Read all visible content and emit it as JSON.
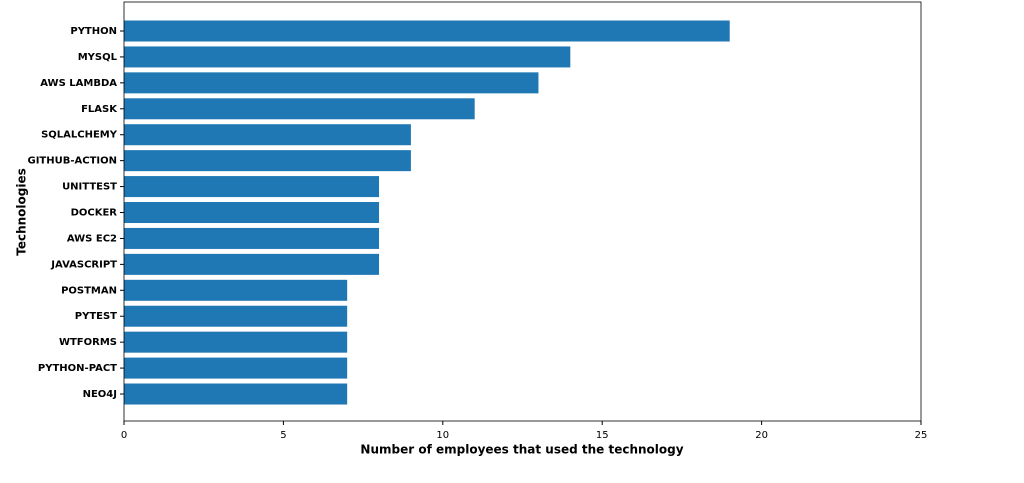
{
  "chart_data": {
    "type": "barh",
    "xlabel": "Number of employees that used the technology",
    "ylabel": "Technologies",
    "categories": [
      "PYTHON",
      "MYSQL",
      "AWS LAMBDA",
      "FLASK",
      "SQLALCHEMY",
      "GITHUB-ACTION",
      "UNITTEST",
      "DOCKER",
      "AWS EC2",
      "JAVASCRIPT",
      "POSTMAN",
      "PYTEST",
      "WTFORMS",
      "PYTHON-PACT",
      "NEO4J"
    ],
    "values": [
      19,
      14,
      13,
      11,
      9,
      9,
      8,
      8,
      8,
      8,
      7,
      7,
      7,
      7,
      7
    ],
    "color": "#1f77b4",
    "xlim": [
      0,
      25
    ],
    "xticks": [
      0,
      5,
      10,
      15,
      20,
      25
    ],
    "grid": false
  }
}
